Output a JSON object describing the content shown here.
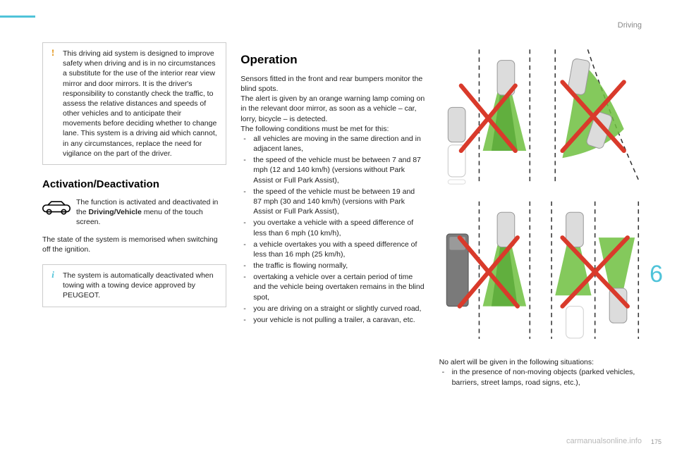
{
  "header": {
    "section": "Driving",
    "chapter": "6"
  },
  "col1": {
    "warning_text": "This driving aid system is designed to improve safety when driving and is in no circumstances a substitute for the use of the interior rear view mirror and door mirrors. It is the driver's responsibility to constantly check the traffic, to assess the relative distances and speeds of other vehicles and to anticipate their movements before deciding whether to change lane. This system is a driving aid which cannot, in any circumstances, replace the need for vigilance on the part of the driver.",
    "h_activation": "Activation/Deactivation",
    "touch_pre": "The function is activated and deactivated in the ",
    "touch_bold": "Driving/Vehicle",
    "touch_post": " menu of the touch screen.",
    "state_text": "The state of the system is memorised when switching off the ignition.",
    "info_text": "The system is automatically deactivated when towing with a towing device approved by PEUGEOT."
  },
  "col2": {
    "h_operation": "Operation",
    "p1": "Sensors fitted in the front and rear bumpers monitor the blind spots.",
    "p2": "The alert is given by an orange warning lamp coming on in the relevant door mirror, as soon as a vehicle – car, lorry, bicycle – is detected.",
    "p3": "The following conditions must be met for this:",
    "items": [
      "all vehicles are moving in the same direction and in adjacent lanes,",
      "the speed of the vehicle must be between 7 and 87 mph (12 and 140 km/h) (versions without Park Assist or Full Park Assist),",
      "the speed of the vehicle must be between 19 and 87 mph (30 and 140 km/h) (versions with Park Assist or Full Park Assist),",
      "you overtake a vehicle with a speed difference of less than 6 mph (10 km/h),",
      "a vehicle overtakes you with a speed difference of less than 16 mph (25 km/h),",
      "the traffic is flowing normally,",
      "overtaking a vehicle over a certain period of time and the vehicle being overtaken remains in the blind spot,",
      "you are driving on a straight or slightly curved road,",
      "your vehicle is not pulling a trailer, a caravan, etc."
    ]
  },
  "col3": {
    "noalert": "No alert will be given in the following situations:",
    "items": [
      "in the presence of non-moving objects (parked vehicles, barriers, street lamps, road signs, etc.),"
    ],
    "diagram": {
      "cone_color": "#6fbf3f",
      "cone_dark": "#4a9e2a",
      "car_fill": "#dcdcdc",
      "car_stroke": "#9a9a9a",
      "truck_fill": "#7a7a7a",
      "x_color": "#d93a2b",
      "lane_dash": "#333333"
    }
  },
  "footer": {
    "watermark": "carmanualsonline.info",
    "page": "175"
  },
  "colors": {
    "accent": "#4fc3d9",
    "warn": "#e08a00"
  }
}
